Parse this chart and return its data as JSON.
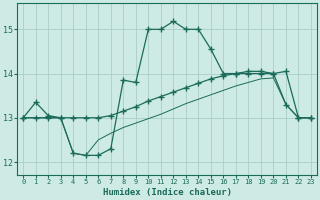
{
  "xlabel": "Humidex (Indice chaleur)",
  "bg_color": "#ceeae4",
  "line_color": "#1a6b5a",
  "grid_color": "#aacfc8",
  "xlim": [
    -0.5,
    23.5
  ],
  "ylim": [
    11.7,
    15.6
  ],
  "yticks": [
    12,
    13,
    14,
    15
  ],
  "xticks": [
    0,
    1,
    2,
    3,
    4,
    5,
    6,
    7,
    8,
    9,
    10,
    11,
    12,
    13,
    14,
    15,
    16,
    17,
    18,
    19,
    20,
    21,
    22,
    23
  ],
  "line_upper_x": [
    0,
    1,
    2,
    3,
    4,
    5,
    6,
    7,
    8,
    9,
    10,
    11,
    12,
    13,
    14,
    15,
    16,
    17,
    18,
    19,
    20,
    21,
    22,
    23
  ],
  "line_upper_y": [
    13.0,
    13.35,
    13.05,
    13.0,
    12.2,
    12.15,
    12.15,
    12.3,
    13.85,
    13.8,
    15.0,
    15.0,
    15.18,
    15.0,
    15.0,
    14.55,
    14.0,
    14.0,
    14.0,
    14.0,
    14.0,
    13.3,
    13.0,
    13.0
  ],
  "line_diag_x": [
    0,
    1,
    2,
    3,
    4,
    5,
    6,
    7,
    8,
    9,
    10,
    11,
    12,
    13,
    14,
    15,
    16,
    17,
    18,
    19,
    20,
    21,
    22,
    23
  ],
  "line_diag_y": [
    13.0,
    13.0,
    13.0,
    13.0,
    13.0,
    13.0,
    13.0,
    13.05,
    13.15,
    13.25,
    13.38,
    13.48,
    13.58,
    13.68,
    13.78,
    13.88,
    13.95,
    14.0,
    14.05,
    14.05,
    14.0,
    14.05,
    13.0,
    13.0
  ],
  "line_lower_x": [
    0,
    1,
    2,
    3,
    4,
    5,
    6,
    7,
    8,
    9,
    10,
    11,
    12,
    13,
    14,
    15,
    16,
    17,
    18,
    19,
    20,
    21,
    22,
    23
  ],
  "line_lower_y": [
    13.0,
    13.0,
    13.0,
    13.0,
    12.2,
    12.15,
    12.5,
    12.65,
    12.78,
    12.88,
    12.98,
    13.08,
    13.2,
    13.32,
    13.42,
    13.52,
    13.62,
    13.72,
    13.8,
    13.88,
    13.9,
    13.3,
    13.0,
    13.0
  ]
}
